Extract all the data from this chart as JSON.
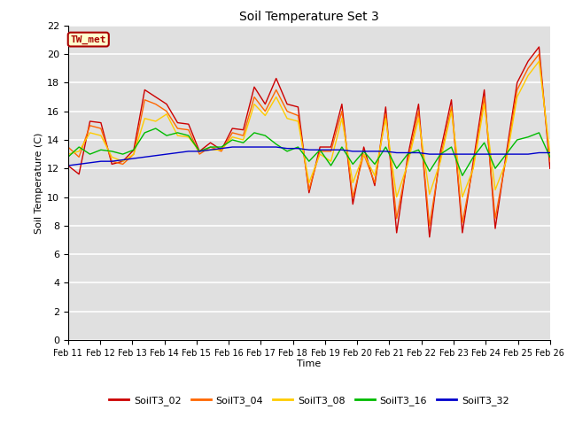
{
  "title": "Soil Temperature Set 3",
  "xlabel": "Time",
  "ylabel": "Soil Temperature (C)",
  "ylim": [
    0,
    22
  ],
  "yticks": [
    0,
    2,
    4,
    6,
    8,
    10,
    12,
    14,
    16,
    18,
    20,
    22
  ],
  "x_labels": [
    "Feb 11",
    "Feb 12",
    "Feb 13",
    "Feb 14",
    "Feb 15",
    "Feb 16",
    "Feb 17",
    "Feb 18",
    "Feb 19",
    "Feb 20",
    "Feb 21",
    "Feb 22",
    "Feb 23",
    "Feb 24",
    "Feb 25",
    "Feb 26"
  ],
  "plot_bg_color": "#e0e0e0",
  "fig_bg_color": "#ffffff",
  "annotation_text": "TW_met",
  "annotation_color": "#aa0000",
  "annotation_bg": "#ffffcc",
  "annotation_border": "#aa0000",
  "series_names": [
    "SoilT3_02",
    "SoilT3_04",
    "SoilT3_08",
    "SoilT3_16",
    "SoilT3_32"
  ],
  "series_colors": [
    "#cc0000",
    "#ff6600",
    "#ffcc00",
    "#00bb00",
    "#0000cc"
  ],
  "SoilT3_02": [
    12.2,
    11.6,
    15.3,
    15.2,
    12.3,
    12.5,
    13.3,
    17.5,
    17.0,
    16.5,
    15.2,
    15.1,
    13.2,
    13.8,
    13.3,
    14.8,
    14.7,
    17.7,
    16.5,
    18.3,
    16.5,
    16.3,
    10.3,
    13.5,
    13.5,
    16.5,
    9.5,
    13.5,
    10.8,
    16.3,
    7.5,
    12.8,
    16.5,
    7.2,
    13.2,
    16.8,
    7.5,
    12.5,
    17.5,
    7.8,
    13.0,
    18.0,
    19.5,
    20.5,
    12.0
  ],
  "SoilT3_04": [
    13.5,
    12.8,
    15.0,
    14.8,
    12.5,
    12.3,
    13.0,
    16.8,
    16.5,
    16.0,
    14.8,
    14.7,
    13.0,
    13.5,
    13.2,
    14.5,
    14.3,
    17.0,
    16.0,
    17.5,
    16.0,
    15.7,
    10.5,
    13.2,
    13.2,
    16.0,
    10.0,
    13.0,
    11.0,
    15.8,
    8.5,
    12.5,
    16.0,
    8.0,
    12.8,
    16.3,
    8.2,
    12.2,
    17.0,
    8.5,
    12.7,
    17.5,
    19.0,
    20.0,
    12.5
  ],
  "SoilT3_08": [
    13.0,
    13.2,
    14.5,
    14.3,
    12.8,
    12.5,
    13.0,
    15.5,
    15.3,
    15.8,
    14.3,
    14.2,
    13.2,
    13.3,
    13.3,
    14.2,
    14.0,
    16.5,
    15.7,
    17.0,
    15.5,
    15.3,
    11.0,
    13.0,
    12.5,
    15.5,
    11.0,
    13.0,
    11.5,
    15.5,
    10.0,
    12.3,
    15.5,
    10.2,
    12.5,
    16.0,
    10.0,
    12.0,
    16.5,
    10.5,
    12.5,
    17.0,
    18.5,
    19.5,
    13.0
  ],
  "SoilT3_16": [
    12.8,
    13.5,
    13.0,
    13.3,
    13.2,
    13.0,
    13.3,
    14.5,
    14.8,
    14.3,
    14.5,
    14.3,
    13.2,
    13.5,
    13.5,
    14.0,
    13.8,
    14.5,
    14.3,
    13.7,
    13.2,
    13.5,
    12.5,
    13.3,
    12.2,
    13.5,
    12.3,
    13.2,
    12.3,
    13.5,
    12.0,
    13.0,
    13.3,
    11.8,
    13.0,
    13.5,
    11.5,
    12.8,
    13.8,
    12.0,
    13.0,
    14.0,
    14.2,
    14.5,
    12.8
  ],
  "SoilT3_32": [
    12.2,
    12.3,
    12.4,
    12.5,
    12.5,
    12.6,
    12.7,
    12.8,
    12.9,
    13.0,
    13.1,
    13.2,
    13.2,
    13.3,
    13.4,
    13.5,
    13.5,
    13.5,
    13.5,
    13.5,
    13.4,
    13.4,
    13.3,
    13.3,
    13.3,
    13.3,
    13.2,
    13.2,
    13.2,
    13.2,
    13.1,
    13.1,
    13.1,
    13.0,
    13.0,
    13.0,
    13.0,
    13.0,
    13.0,
    13.0,
    13.0,
    13.0,
    13.0,
    13.1,
    13.1
  ]
}
